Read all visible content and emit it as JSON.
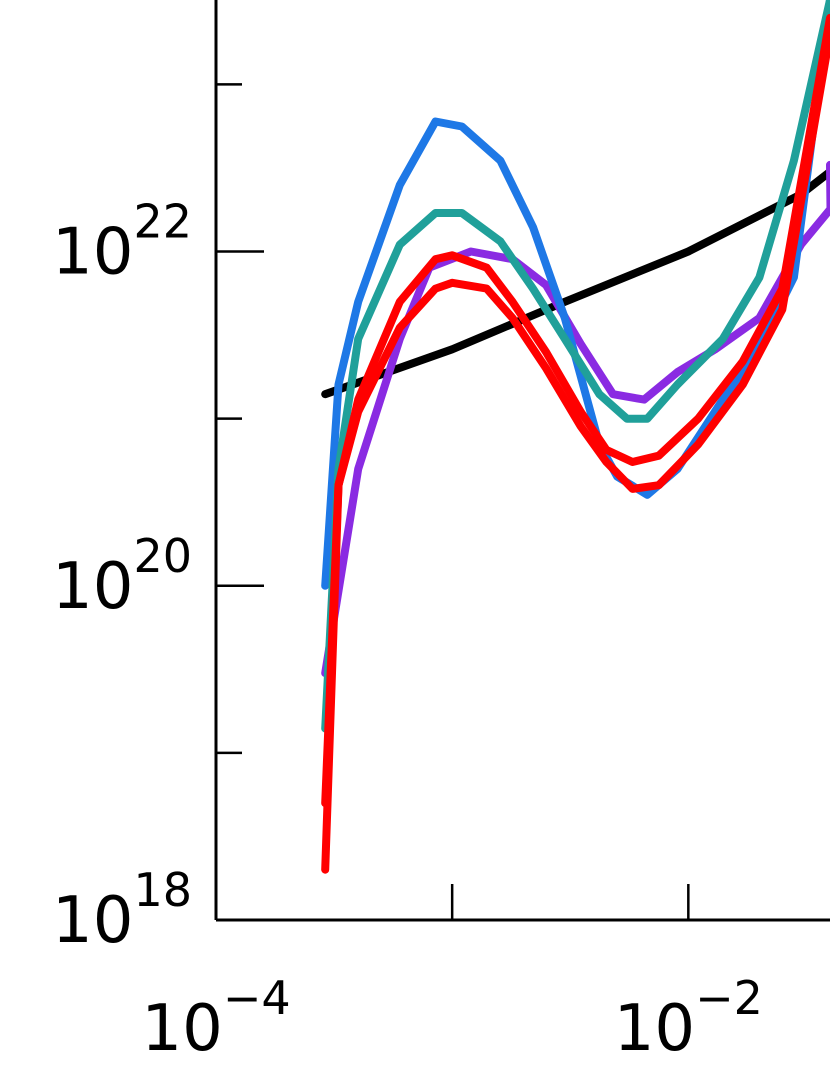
{
  "chart_data": {
    "type": "line",
    "title": "",
    "xlabel": "",
    "ylabel": "",
    "x_scale": "log",
    "y_scale": "log",
    "xlim": [
      0.0001,
      0.0398
    ],
    "ylim": [
      1e+18,
      3.2e+23
    ],
    "grid": false,
    "x_ticks": [
      {
        "base": "10",
        "exp": "−4",
        "value": 0.0001
      },
      {
        "base": "10",
        "exp": "−2",
        "value": 0.01
      }
    ],
    "y_ticks": [
      {
        "base": "10",
        "exp": "18",
        "value": 1e+18
      },
      {
        "base": "10",
        "exp": "20",
        "value": 1e+20
      },
      {
        "base": "10",
        "exp": "22",
        "value": 1e+22
      }
    ],
    "x_minor_ticks": [
      0.001,
      0.01,
      0.1
    ],
    "y_minor_ticks": [
      1e+19,
      1e+21,
      1e+23
    ],
    "series": [
      {
        "color": "#000000",
        "points": [
          [
            0.00029,
            1.4e+21
          ],
          [
            0.001,
            2.6e+21
          ],
          [
            0.003,
            5e+21
          ],
          [
            0.01,
            1e+22
          ],
          [
            0.03,
            2.2e+22
          ],
          [
            0.0398,
            3e+22
          ]
        ]
      },
      {
        "color": "#8a2be2",
        "points": [
          [
            0.00029,
            3e+19
          ],
          [
            0.0004,
            5e+20
          ],
          [
            0.0006,
            3e+21
          ],
          [
            0.0008,
            8e+21
          ],
          [
            0.0012,
            1e+22
          ],
          [
            0.0018,
            9e+21
          ],
          [
            0.0025,
            6.3e+21
          ],
          [
            0.0035,
            2.8e+21
          ],
          [
            0.0048,
            1.4e+21
          ],
          [
            0.0065,
            1.3e+21
          ],
          [
            0.009,
            1.9e+21
          ],
          [
            0.013,
            2.6e+21
          ],
          [
            0.02,
            4e+21
          ],
          [
            0.03,
            1.1e+22
          ],
          [
            0.04,
            1.8e+22
          ],
          [
            0.0398,
            3.3e+22
          ]
        ]
      },
      {
        "color": "#1e78e6",
        "points": [
          [
            0.00029,
            1e+20
          ],
          [
            0.00033,
            1.6e+21
          ],
          [
            0.0004,
            5e+21
          ],
          [
            0.0006,
            2.5e+22
          ],
          [
            0.00085,
            6e+22
          ],
          [
            0.0011,
            5.6e+22
          ],
          [
            0.0016,
            3.5e+22
          ],
          [
            0.0022,
            1.4e+22
          ],
          [
            0.003,
            4e+21
          ],
          [
            0.0042,
            7e+20
          ],
          [
            0.005,
            4.5e+20
          ],
          [
            0.0067,
            3.5e+20
          ],
          [
            0.009,
            5e+20
          ],
          [
            0.014,
            1.3e+21
          ],
          [
            0.02,
            2.7e+21
          ],
          [
            0.028,
            7e+21
          ],
          [
            0.0398,
            3.2e+23
          ]
        ]
      },
      {
        "color": "#20a09a",
        "points": [
          [
            0.00029,
            1.4e+19
          ],
          [
            0.00033,
            5e+20
          ],
          [
            0.0004,
            3e+21
          ],
          [
            0.0006,
            1.1e+22
          ],
          [
            0.00085,
            1.7e+22
          ],
          [
            0.0011,
            1.7e+22
          ],
          [
            0.0016,
            1.15e+22
          ],
          [
            0.0022,
            6e+21
          ],
          [
            0.003,
            3e+21
          ],
          [
            0.0042,
            1.4e+21
          ],
          [
            0.0055,
            1e+21
          ],
          [
            0.0067,
            1e+21
          ],
          [
            0.009,
            1.6e+21
          ],
          [
            0.014,
            3e+21
          ],
          [
            0.02,
            7e+21
          ],
          [
            0.028,
            3.5e+22
          ],
          [
            0.0398,
            3.2e+23
          ]
        ]
      },
      {
        "color": "#ff0000",
        "points": [
          [
            0.00029,
            5e+18
          ],
          [
            0.00033,
            4e+20
          ],
          [
            0.0004,
            1.1e+21
          ],
          [
            0.0006,
            3.5e+21
          ],
          [
            0.00085,
            6e+21
          ],
          [
            0.001,
            6.5e+21
          ],
          [
            0.0014,
            6e+21
          ],
          [
            0.0018,
            4e+21
          ],
          [
            0.0025,
            2e+21
          ],
          [
            0.0035,
            9e+20
          ],
          [
            0.0045,
            5.5e+20
          ],
          [
            0.0058,
            3.8e+20
          ],
          [
            0.0075,
            4e+20
          ],
          [
            0.011,
            7e+20
          ],
          [
            0.017,
            1.6e+21
          ],
          [
            0.025,
            4.5e+21
          ],
          [
            0.0398,
            2e+23
          ]
        ]
      },
      {
        "color": "#ff0000",
        "points": [
          [
            0.00029,
            2e+18
          ],
          [
            0.00033,
            4e+20
          ],
          [
            0.0004,
            1.3e+21
          ],
          [
            0.0006,
            5e+21
          ],
          [
            0.00085,
            9e+21
          ],
          [
            0.001,
            9.5e+21
          ],
          [
            0.0014,
            8e+21
          ],
          [
            0.0018,
            5e+21
          ],
          [
            0.0025,
            2.5e+21
          ],
          [
            0.0035,
            1.1e+21
          ],
          [
            0.0045,
            6.5e+20
          ],
          [
            0.0058,
            5.5e+20
          ],
          [
            0.0075,
            6e+20
          ],
          [
            0.011,
            1e+21
          ],
          [
            0.017,
            2.2e+21
          ],
          [
            0.025,
            6e+21
          ],
          [
            0.0398,
            2.5e+23
          ]
        ]
      }
    ]
  }
}
